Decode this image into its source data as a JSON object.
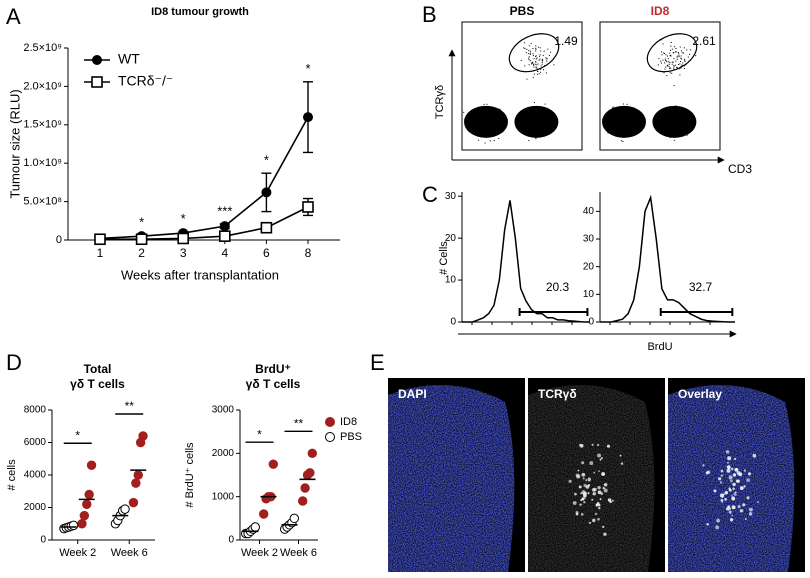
{
  "chart_data": [
    {
      "type": "line",
      "label": "A",
      "title": "ID8 tumour growth",
      "x_label": "Weeks after transplantation",
      "y_label": "Tumour size (RLU)",
      "categories": [
        "1",
        "2",
        "3",
        "4",
        "6",
        "8"
      ],
      "ylim": [
        0,
        2500000000
      ],
      "yticks": [
        0,
        {
          "value": 500000000,
          "label": "5.0×10⁸"
        },
        {
          "value": 1000000000,
          "label": "1.0×10⁹"
        },
        {
          "value": 1500000000,
          "label": "1.5×10⁹"
        },
        {
          "value": 2000000000,
          "label": "2.0×10⁹"
        },
        {
          "value": 2500000000,
          "label": "2.5×10⁹"
        }
      ],
      "series": [
        {
          "name": "WT",
          "color": "#000000",
          "marker": "filled-circle",
          "values": [
            20000000,
            50000000,
            90000000,
            180000000,
            620000000,
            1600000000
          ],
          "errors": [
            10000000,
            15000000,
            20000000,
            30000000,
            250000000,
            460000000
          ]
        },
        {
          "name": "TCRδ⁻/⁻",
          "color": "#000000",
          "marker": "open-square",
          "values": [
            10000000,
            10000000,
            20000000,
            50000000,
            160000000,
            430000000
          ],
          "errors": [
            5000000,
            5000000,
            8000000,
            15000000,
            30000000,
            110000000
          ]
        }
      ],
      "annotations": [
        "*",
        "*",
        "***",
        "*",
        "*"
      ],
      "legend": "upper left"
    },
    {
      "type": "line",
      "label": "C",
      "y_label": "# Cells",
      "x_label": "BrdU",
      "x": [
        0,
        1,
        2,
        3,
        4,
        5,
        6,
        7,
        8,
        9,
        10,
        11,
        12,
        13,
        14,
        15,
        16,
        17,
        18,
        19,
        20,
        21,
        22,
        23,
        24
      ],
      "xlim": [
        0,
        24
      ],
      "ylim": [
        0,
        31
      ],
      "yticks": [
        0,
        10,
        20,
        30
      ],
      "values": [
        0,
        0,
        0,
        0.5,
        1,
        2,
        4,
        10,
        22,
        29,
        20,
        8,
        5,
        3,
        2,
        2,
        1,
        1,
        0.5,
        0.5,
        0.3,
        0.2,
        0.1,
        0,
        0
      ],
      "color": "#000000",
      "gate_label": "20.3"
    },
    {
      "type": "line",
      "x": [
        0,
        1,
        2,
        3,
        4,
        5,
        6,
        7,
        8,
        9,
        10,
        11,
        12,
        13,
        14,
        15,
        16,
        17,
        18,
        19,
        20,
        21,
        22,
        23,
        24
      ],
      "xlim": [
        0,
        24
      ],
      "ylim": [
        0,
        47
      ],
      "yticks": [
        0,
        10,
        20,
        30,
        40
      ],
      "values": [
        0,
        0,
        0,
        0.5,
        1,
        3,
        8,
        20,
        40,
        45,
        30,
        12,
        8,
        8,
        7,
        5,
        3,
        2,
        1,
        0.5,
        0.3,
        0.2,
        0.1,
        0,
        0
      ],
      "color": "#000000",
      "gate_label": "32.7"
    },
    {
      "type": "strip",
      "label": "D",
      "title": [
        "Total",
        "γδ T cells"
      ],
      "y_label": "# cells",
      "categories": [
        "Week 2",
        "Week 6"
      ],
      "ylim": [
        0,
        8000
      ],
      "yticks": [
        0,
        2000,
        4000,
        6000,
        8000
      ],
      "series": [
        {
          "name": "ID8",
          "color": "#a31f1f",
          "values": [
            [
              1000,
              1500,
              2200,
              2800,
              4600
            ],
            [
              2300,
              3500,
              4000,
              6000,
              6400
            ]
          ],
          "means": [
            2500,
            4300
          ]
        },
        {
          "name": "PBS",
          "color": "#ffffff",
          "values": [
            [
              700,
              750,
              800,
              850,
              900
            ],
            [
              1000,
              1200,
              1500,
              1800,
              1900
            ]
          ],
          "means": [
            800,
            1500
          ]
        }
      ],
      "significance": [
        "*",
        "**"
      ]
    },
    {
      "type": "strip",
      "title": [
        "BrdU⁺",
        "γδ T cells"
      ],
      "y_label": "# BrdU⁺ cells",
      "categories": [
        "Week 2",
        "Week 6"
      ],
      "ylim": [
        0,
        3000
      ],
      "yticks": [
        0,
        1000,
        2000,
        3000
      ],
      "series": [
        {
          "name": "ID8",
          "color": "#a31f1f",
          "values": [
            [
              600,
              950,
              1000,
              1000,
              1750
            ],
            [
              900,
              1200,
              1500,
              1550,
              2000
            ]
          ],
          "means": [
            1000,
            1400
          ]
        },
        {
          "name": "PBS",
          "color": "#ffffff",
          "values": [
            [
              150,
              150,
              200,
              250,
              300
            ],
            [
              250,
              300,
              350,
              400,
              500
            ]
          ],
          "means": [
            200,
            350
          ]
        }
      ],
      "significance": [
        "*",
        "**"
      ],
      "legend": "upper right"
    }
  ],
  "flow": {
    "label": "B",
    "y_axis": "TCRγδ",
    "x_axis": "CD3",
    "plots": [
      {
        "title": "PBS",
        "gate": "1.49"
      },
      {
        "title": "ID8",
        "gate": "2.61"
      }
    ]
  },
  "microscopy": {
    "label": "E",
    "panels": [
      "DAPI",
      "TCRγδ",
      "Overlay"
    ]
  }
}
